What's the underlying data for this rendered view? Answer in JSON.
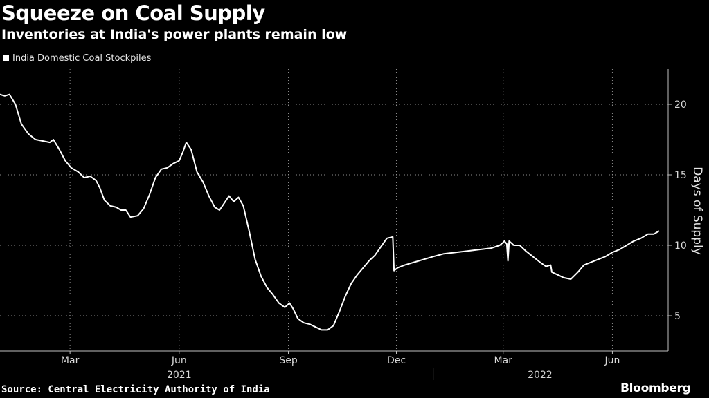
{
  "header": {
    "title": "Squeeze on Coal Supply",
    "subtitle": "Inventories at India's power plants remain low"
  },
  "footer": {
    "source": "Source: Central Electricity Authority of India",
    "brand": "Bloomberg"
  },
  "colors": {
    "background": "#000000",
    "line": "#ffffff",
    "grid": "#8c8c8c"
  },
  "chart_data": {
    "type": "line",
    "ylabel": "Days of Supply",
    "y_axis_position": "right",
    "ylim": [
      2.5,
      22.5
    ],
    "yticks": [
      5,
      10,
      15,
      20
    ],
    "xlim": [
      "2021-01-01",
      "2022-07-18"
    ],
    "xticks": [
      {
        "date": "2021-03-01",
        "label": "Mar"
      },
      {
        "date": "2021-06-01",
        "label": "Jun"
      },
      {
        "date": "2021-09-01",
        "label": "Sep"
      },
      {
        "date": "2021-12-01",
        "label": "Dec"
      },
      {
        "date": "2022-03-01",
        "label": "Mar"
      },
      {
        "date": "2022-06-01",
        "label": "Jun"
      }
    ],
    "year_labels": [
      {
        "label": "2021",
        "date": "2021-06-01"
      },
      {
        "label": "2022",
        "date": "2022-04-01"
      }
    ],
    "grid": "dotted",
    "legend_position": "top-left",
    "series": [
      {
        "name": "India Domestic Coal Stockpiles",
        "color": "#ffffff",
        "points": [
          [
            "2021-01-01",
            20.7
          ],
          [
            "2021-01-05",
            20.6
          ],
          [
            "2021-01-09",
            20.7
          ],
          [
            "2021-01-14",
            20.0
          ],
          [
            "2021-01-19",
            18.6
          ],
          [
            "2021-01-25",
            17.9
          ],
          [
            "2021-01-31",
            17.5
          ],
          [
            "2021-02-06",
            17.4
          ],
          [
            "2021-02-12",
            17.3
          ],
          [
            "2021-02-15",
            17.5
          ],
          [
            "2021-02-20",
            16.8
          ],
          [
            "2021-02-25",
            16.0
          ],
          [
            "2021-03-02",
            15.5
          ],
          [
            "2021-03-08",
            15.2
          ],
          [
            "2021-03-13",
            14.8
          ],
          [
            "2021-03-18",
            14.9
          ],
          [
            "2021-03-23",
            14.6
          ],
          [
            "2021-03-26",
            14.1
          ],
          [
            "2021-03-30",
            13.2
          ],
          [
            "2021-04-04",
            12.8
          ],
          [
            "2021-04-09",
            12.7
          ],
          [
            "2021-04-13",
            12.5
          ],
          [
            "2021-04-17",
            12.5
          ],
          [
            "2021-04-21",
            12.0
          ],
          [
            "2021-04-27",
            12.1
          ],
          [
            "2021-05-02",
            12.6
          ],
          [
            "2021-05-07",
            13.6
          ],
          [
            "2021-05-12",
            14.8
          ],
          [
            "2021-05-17",
            15.4
          ],
          [
            "2021-05-22",
            15.5
          ],
          [
            "2021-05-27",
            15.8
          ],
          [
            "2021-06-01",
            16.0
          ],
          [
            "2021-06-04",
            16.6
          ],
          [
            "2021-06-07",
            17.3
          ],
          [
            "2021-06-11",
            16.8
          ],
          [
            "2021-06-16",
            15.2
          ],
          [
            "2021-06-21",
            14.5
          ],
          [
            "2021-06-26",
            13.5
          ],
          [
            "2021-07-01",
            12.7
          ],
          [
            "2021-07-05",
            12.5
          ],
          [
            "2021-07-09",
            13.0
          ],
          [
            "2021-07-13",
            13.5
          ],
          [
            "2021-07-17",
            13.1
          ],
          [
            "2021-07-21",
            13.4
          ],
          [
            "2021-07-25",
            12.8
          ],
          [
            "2021-07-30",
            11.0
          ],
          [
            "2021-08-04",
            9.0
          ],
          [
            "2021-08-09",
            7.8
          ],
          [
            "2021-08-14",
            7.0
          ],
          [
            "2021-08-19",
            6.5
          ],
          [
            "2021-08-24",
            5.9
          ],
          [
            "2021-08-29",
            5.6
          ],
          [
            "2021-09-02",
            5.9
          ],
          [
            "2021-09-05",
            5.5
          ],
          [
            "2021-09-09",
            4.8
          ],
          [
            "2021-09-14",
            4.5
          ],
          [
            "2021-09-19",
            4.4
          ],
          [
            "2021-09-24",
            4.2
          ],
          [
            "2021-09-29",
            4.0
          ],
          [
            "2021-10-04",
            4.0
          ],
          [
            "2021-10-09",
            4.3
          ],
          [
            "2021-10-14",
            5.3
          ],
          [
            "2021-10-19",
            6.4
          ],
          [
            "2021-10-24",
            7.3
          ],
          [
            "2021-10-29",
            7.9
          ],
          [
            "2021-11-03",
            8.4
          ],
          [
            "2021-11-08",
            8.9
          ],
          [
            "2021-11-13",
            9.3
          ],
          [
            "2021-11-18",
            9.9
          ],
          [
            "2021-11-23",
            10.5
          ],
          [
            "2021-11-28",
            10.6
          ],
          [
            "2021-11-29",
            8.2
          ],
          [
            "2021-12-02",
            8.4
          ],
          [
            "2021-12-08",
            8.6
          ],
          [
            "2021-12-16",
            8.8
          ],
          [
            "2021-12-24",
            9.0
          ],
          [
            "2022-01-01",
            9.2
          ],
          [
            "2022-01-10",
            9.4
          ],
          [
            "2022-01-20",
            9.5
          ],
          [
            "2022-01-30",
            9.6
          ],
          [
            "2022-02-09",
            9.7
          ],
          [
            "2022-02-19",
            9.8
          ],
          [
            "2022-02-26",
            10.0
          ],
          [
            "2022-03-01",
            10.2
          ],
          [
            "2022-03-02",
            10.3
          ],
          [
            "2022-03-04",
            10.1
          ],
          [
            "2022-03-05",
            8.9
          ],
          [
            "2022-03-06",
            10.3
          ],
          [
            "2022-03-10",
            10.0
          ],
          [
            "2022-03-15",
            10.0
          ],
          [
            "2022-03-20",
            9.6
          ],
          [
            "2022-03-26",
            9.2
          ],
          [
            "2022-04-01",
            8.8
          ],
          [
            "2022-04-06",
            8.5
          ],
          [
            "2022-04-10",
            8.6
          ],
          [
            "2022-04-11",
            8.1
          ],
          [
            "2022-04-16",
            7.9
          ],
          [
            "2022-04-21",
            7.7
          ],
          [
            "2022-04-27",
            7.6
          ],
          [
            "2022-05-03",
            8.1
          ],
          [
            "2022-05-08",
            8.6
          ],
          [
            "2022-05-14",
            8.8
          ],
          [
            "2022-05-20",
            9.0
          ],
          [
            "2022-05-26",
            9.2
          ],
          [
            "2022-06-01",
            9.5
          ],
          [
            "2022-06-07",
            9.7
          ],
          [
            "2022-06-13",
            10.0
          ],
          [
            "2022-06-19",
            10.3
          ],
          [
            "2022-06-25",
            10.5
          ],
          [
            "2022-07-01",
            10.8
          ],
          [
            "2022-07-06",
            10.8
          ],
          [
            "2022-07-10",
            11.0
          ]
        ]
      }
    ]
  }
}
